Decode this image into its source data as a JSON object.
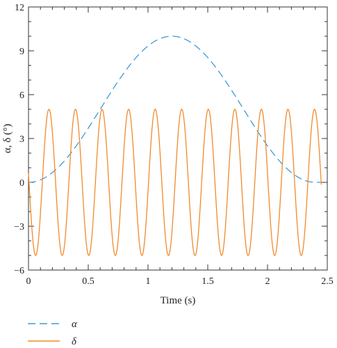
{
  "chart_data": {
    "type": "line",
    "xlabel": "Time (s)",
    "ylabel": "α, δ (°)",
    "xlim": [
      0,
      2.5
    ],
    "ylim": [
      -6,
      12
    ],
    "xticks": [
      "0",
      "0.5",
      "1",
      "1.5",
      "2",
      "2.5"
    ],
    "yticks": [
      "−6",
      "−3",
      "0",
      "3",
      "6",
      "9",
      "12"
    ],
    "grid": false,
    "legend": "bottom-left",
    "series": [
      {
        "name": "α",
        "color": "#3b9bd6",
        "dash": "dashed",
        "x": [
          0,
          0.1,
          0.2,
          0.3,
          0.4,
          0.5,
          0.6,
          0.7,
          0.8,
          0.9,
          1.0,
          1.1,
          1.2,
          1.3,
          1.4,
          1.5,
          1.6,
          1.7,
          1.8,
          1.9,
          2.0,
          2.1,
          2.2,
          2.3,
          2.4,
          2.45
        ],
        "y": [
          0.0,
          0.16,
          0.64,
          1.42,
          2.44,
          3.65,
          4.99,
          6.37,
          7.71,
          8.75,
          9.46,
          9.89,
          10.0,
          9.89,
          9.46,
          8.75,
          7.71,
          6.37,
          4.99,
          3.65,
          2.44,
          1.42,
          0.64,
          0.16,
          0.0,
          0.0
        ]
      },
      {
        "name": "δ",
        "color": "#f08a2c",
        "dash": "solid",
        "amplitude": 5,
        "frequency_hz": 4.5,
        "x_range": [
          0,
          2.45
        ],
        "peaks_x": [
          0.17,
          0.39,
          0.61,
          0.83,
          1.06,
          1.28,
          1.5,
          1.72,
          1.94,
          2.17,
          2.39
        ],
        "troughs_x": [
          0.06,
          0.28,
          0.5,
          0.72,
          0.94,
          1.17,
          1.39,
          1.61,
          1.83,
          2.06,
          2.28
        ]
      }
    ]
  }
}
